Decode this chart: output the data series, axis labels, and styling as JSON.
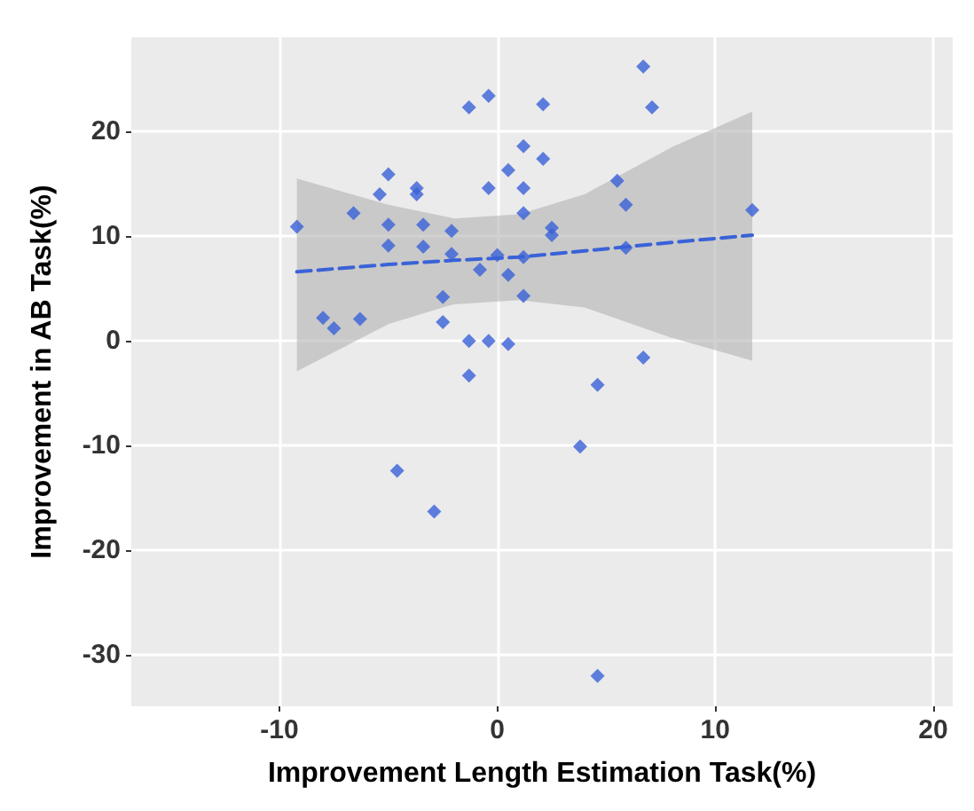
{
  "chart_data": {
    "type": "scatter",
    "xlabel": "Improvement Length Estimation Task(%)",
    "ylabel": "Improvement in AB Task(%)",
    "xlim": [
      -16.8,
      20.9
    ],
    "ylim": [
      -34.9,
      29
    ],
    "xticks": [
      -10,
      0,
      10,
      20
    ],
    "yticks": [
      -30,
      -20,
      -10,
      0,
      10,
      20
    ],
    "grid": true,
    "marker": "diamond",
    "series": [
      {
        "color": "#3a62d8",
        "x": [
          -9.2,
          -8.0,
          -7.5,
          -6.6,
          -6.3,
          -5.4,
          -5.0,
          -5.0,
          -5.0,
          -3.7,
          -3.7,
          -3.4,
          -3.4,
          -2.1,
          -2.1,
          -2.5,
          -2.5,
          -1.3,
          -0.4,
          2.1,
          -1.3,
          -0.4,
          0.5,
          -0.8,
          -0.4,
          0.5,
          1.2,
          1.2,
          1.2,
          1.2,
          1.2,
          2.1,
          0.0,
          0.5,
          2.5,
          2.5,
          5.5,
          5.9,
          5.9,
          6.7,
          7.1,
          11.7,
          6.7,
          -1.3,
          4.6,
          3.8,
          -4.6,
          -2.9,
          4.6
        ],
        "values": [
          10.9,
          2.2,
          1.2,
          12.2,
          2.1,
          14.0,
          15.9,
          11.1,
          9.1,
          14.6,
          14.0,
          11.1,
          9.0,
          10.5,
          8.3,
          4.2,
          1.8,
          22.3,
          23.4,
          22.6,
          0.0,
          0.0,
          -0.3,
          6.8,
          14.6,
          16.3,
          18.6,
          14.6,
          12.2,
          8.0,
          4.3,
          17.4,
          8.2,
          6.3,
          10.8,
          10.1,
          15.3,
          13.0,
          8.9,
          26.2,
          22.3,
          12.5,
          -1.6,
          -3.3,
          -4.2,
          -10.1,
          -12.4,
          -16.3,
          -32.0
        ]
      },
      {
        "type": "line",
        "color": "#3a62d8",
        "line_style": "dashed",
        "marker": "none",
        "x": [
          -9.2,
          -5,
          -2,
          1,
          4,
          8,
          11.7
        ],
        "values": [
          6.6,
          7.3,
          7.7,
          8.0,
          8.6,
          9.4,
          10.1
        ],
        "lower": [
          -2.9,
          1.6,
          3.5,
          3.9,
          3.2,
          0.3,
          -1.9
        ],
        "upper": [
          15.5,
          13.0,
          11.7,
          12.1,
          14.0,
          18.5,
          21.9
        ]
      }
    ]
  }
}
